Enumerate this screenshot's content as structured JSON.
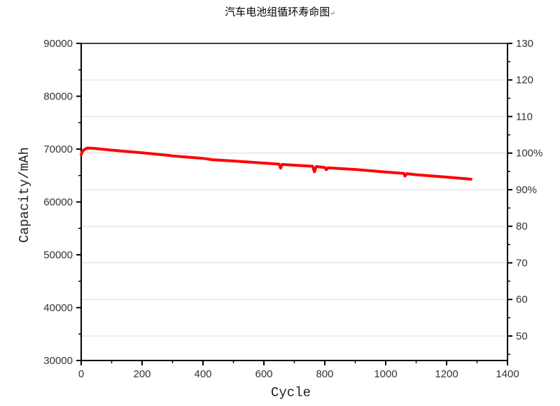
{
  "title": "汽车电池组循环寿命图",
  "chart_data": {
    "type": "line",
    "title": "汽车电池组循环寿命图",
    "xlabel": "Cycle",
    "ylabel": "Capacity/mAh",
    "xlim": [
      0,
      1400
    ],
    "ylim": [
      30000,
      90000
    ],
    "y2lim": [
      43.3,
      130
    ],
    "x_ticks": [
      "0",
      "200",
      "400",
      "600",
      "800",
      "1000",
      "1200",
      "1400"
    ],
    "y_ticks": [
      "30000",
      "40000",
      "50000",
      "60000",
      "70000",
      "80000",
      "90000"
    ],
    "y2_ticks": [
      {
        "value": 50,
        "label": "50"
      },
      {
        "value": 60,
        "label": "60"
      },
      {
        "value": 70,
        "label": "70"
      },
      {
        "value": 80,
        "label": "80"
      },
      {
        "value": 90,
        "label": "90%"
      },
      {
        "value": 100,
        "label": "100%"
      },
      {
        "value": 110,
        "label": "110"
      },
      {
        "value": 120,
        "label": "120"
      },
      {
        "value": 130,
        "label": "130"
      }
    ],
    "grid": "horizontal at right-axis major ticks",
    "line_color": "#ff0000",
    "series": [
      {
        "x": [
          0,
          5,
          10,
          20,
          40,
          100,
          200,
          290,
          300,
          400,
          430,
          500,
          600,
          650,
          655,
          660,
          700,
          760,
          766,
          772,
          800,
          805,
          810,
          900,
          1000,
          1060,
          1063,
          1070,
          1100,
          1200,
          1280
        ],
        "y": [
          69000,
          69600,
          69900,
          70200,
          70150,
          69800,
          69300,
          68800,
          68700,
          68250,
          68000,
          67750,
          67350,
          67150,
          66400,
          67100,
          66950,
          66750,
          65700,
          66700,
          66500,
          66100,
          66450,
          66150,
          65650,
          65400,
          64900,
          65350,
          65150,
          64700,
          64300
        ]
      }
    ]
  }
}
